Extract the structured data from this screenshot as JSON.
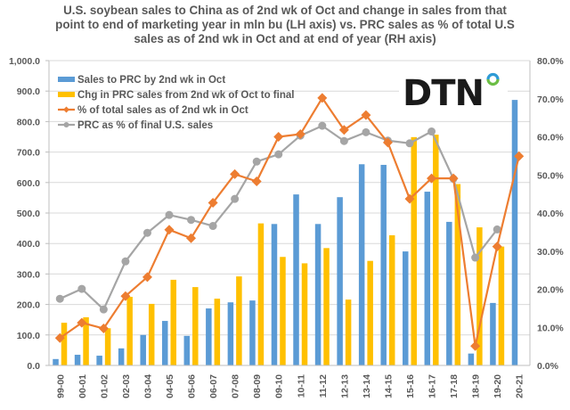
{
  "chart_data": {
    "type": "bar+line",
    "title_lines": [
      "U.S. soybean sales to China as of 2nd wk of Oct and change in sales from that",
      "point to end of marketing year in mln bu (LH axis) vs. PRC sales as % of total U.S",
      "sales as of 2nd wk in Oct and at end of year (RH axis)"
    ],
    "categories": [
      "99-00",
      "00-01",
      "01-02",
      "02-03",
      "03-04",
      "04-05",
      "05-06",
      "06-07",
      "07-08",
      "08-09",
      "09-10",
      "10-11",
      "11-12",
      "12-13",
      "13-14",
      "14-15",
      "15-16",
      "16-17",
      "17-18",
      "18-19",
      "19-20",
      "20-21"
    ],
    "left_axis": {
      "min": 0,
      "max": 1000,
      "step": 100,
      "tick_labels": [
        "0.0",
        "100.0",
        "200.0",
        "300.0",
        "400.0",
        "500.0",
        "600.0",
        "700.0",
        "800.0",
        "900.0",
        "1,000.0"
      ]
    },
    "right_axis": {
      "min": 0,
      "max": 80,
      "step": 10,
      "tick_labels": [
        "0.0%",
        "10.0%",
        "20.0%",
        "30.0%",
        "40.0%",
        "50.0%",
        "60.0%",
        "70.0%",
        "80.0%"
      ]
    },
    "grid": true,
    "legend_position": "top-left",
    "series": [
      {
        "name": "Sales to PRC by 2nd wk in Oct",
        "kind": "bar",
        "axis": "left",
        "color": "#5b9bd5",
        "values": [
          21,
          35,
          32,
          56,
          100,
          146,
          97,
          187,
          207,
          213,
          464,
          561,
          464,
          552,
          660,
          658,
          374,
          570,
          471,
          39,
          205,
          871
        ]
      },
      {
        "name": "Chg in PRC sales from 2nd wk of Oct to final",
        "kind": "bar",
        "axis": "left",
        "color": "#ffc000",
        "values": [
          140,
          158,
          122,
          225,
          202,
          281,
          257,
          219,
          292,
          466,
          356,
          335,
          385,
          216,
          343,
          427,
          749,
          757,
          595,
          453,
          390,
          null
        ]
      },
      {
        "name": "% of total sales as of 2nd wk in Oct",
        "kind": "line",
        "marker": "diamond",
        "axis": "right",
        "color": "#ed7d31",
        "values": [
          7.2,
          11.2,
          9.7,
          18.2,
          23.2,
          35.6,
          33.4,
          42.7,
          50.2,
          48.3,
          60.0,
          60.7,
          70.2,
          61.8,
          65.7,
          58.5,
          43.7,
          49.1,
          49.1,
          5.1,
          31.2,
          54.9
        ]
      },
      {
        "name": "PRC as % of final U.S. sales",
        "kind": "line",
        "marker": "circle",
        "axis": "right",
        "color": "#a5a5a5",
        "values": [
          17.5,
          20.1,
          14.7,
          27.3,
          34.8,
          39.5,
          38.2,
          36.6,
          43.7,
          53.5,
          55.4,
          60.3,
          62.9,
          58.9,
          61.2,
          59.0,
          58.3,
          61.4,
          49.0,
          28.3,
          35.7,
          null
        ]
      }
    ],
    "logo": {
      "text": "DTN",
      "dot_colors": [
        "#2e9bd6",
        "#6cbe45"
      ]
    }
  }
}
